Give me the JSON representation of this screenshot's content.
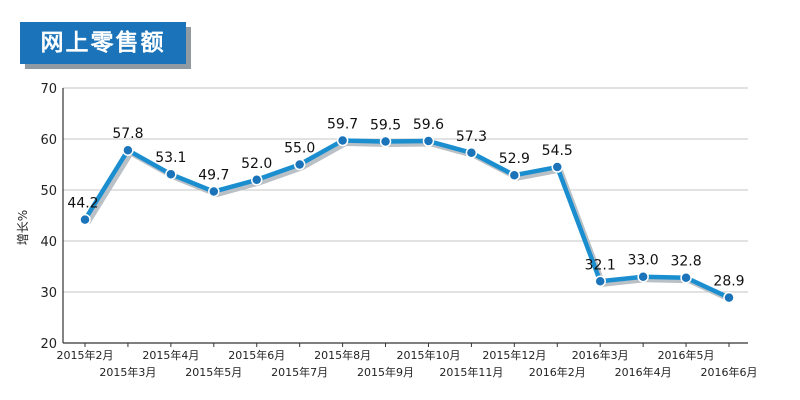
{
  "chart_data": {
    "type": "line",
    "title": "网上零售额",
    "ylabel": "增长%",
    "xlabel": "",
    "ylim": [
      20,
      70
    ],
    "yticks": [
      20,
      30,
      40,
      50,
      60,
      70
    ],
    "grid": true,
    "categories": [
      "2015年2月",
      "2015年3月",
      "2015年4月",
      "2015年5月",
      "2015年6月",
      "2015年7月",
      "2015年8月",
      "2015年9月",
      "2015年10月",
      "2015年11月",
      "2015年12月",
      "2016年2月",
      "2016年3月",
      "2016年4月",
      "2016年5月",
      "2016年6月"
    ],
    "series": [
      {
        "values": [
          44.2,
          57.8,
          53.1,
          49.7,
          52.0,
          55.0,
          59.7,
          59.5,
          59.6,
          57.3,
          52.9,
          54.5,
          32.1,
          33.0,
          32.8,
          28.9
        ]
      }
    ],
    "point_labels": [
      "44.2",
      "57.8",
      "53.1",
      "49.7",
      "52.0",
      "55.0",
      "59.7",
      "59.5",
      "59.6",
      "57.3",
      "52.9",
      "54.5",
      "32.1",
      "33.0",
      "32.8",
      "28.9"
    ],
    "colors": {
      "line": "#1b8ed0",
      "marker": "#1b73b9",
      "title_bg": "#1b73b9"
    }
  }
}
